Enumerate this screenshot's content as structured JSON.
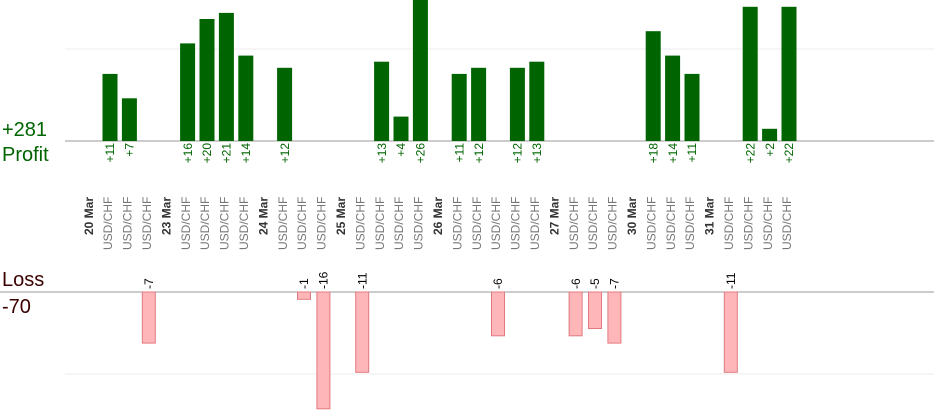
{
  "summary": {
    "profit_total": "+281",
    "profit_label": "Profit",
    "loss_label": "Loss",
    "loss_total": "-70"
  },
  "colors": {
    "profit_bar": "#006400",
    "loss_bar": "#ffb6b9",
    "loss_bar_stroke": "#e07a80",
    "profit_text": "#006400",
    "date_text": "#333333",
    "pair_text": "#777777"
  },
  "chart_data": {
    "type": "bar",
    "pair": "USD/CHF",
    "days": [
      {
        "date": "20 Mar",
        "trades": [
          11,
          7,
          -7
        ]
      },
      {
        "date": "23 Mar",
        "trades": [
          16,
          20,
          21,
          14
        ]
      },
      {
        "date": "24 Mar",
        "trades": [
          12,
          -1,
          -16
        ]
      },
      {
        "date": "25 Mar",
        "trades": [
          -11,
          13,
          4,
          26
        ]
      },
      {
        "date": "26 Mar",
        "trades": [
          11,
          12,
          -6,
          12,
          13
        ]
      },
      {
        "date": "27 Mar",
        "trades": [
          -6,
          -5,
          -7
        ]
      },
      {
        "date": "30 Mar",
        "trades": [
          18,
          14,
          11
        ]
      },
      {
        "date": "31 Mar",
        "trades": [
          -11,
          22,
          2,
          22
        ]
      }
    ],
    "grid": true
  }
}
